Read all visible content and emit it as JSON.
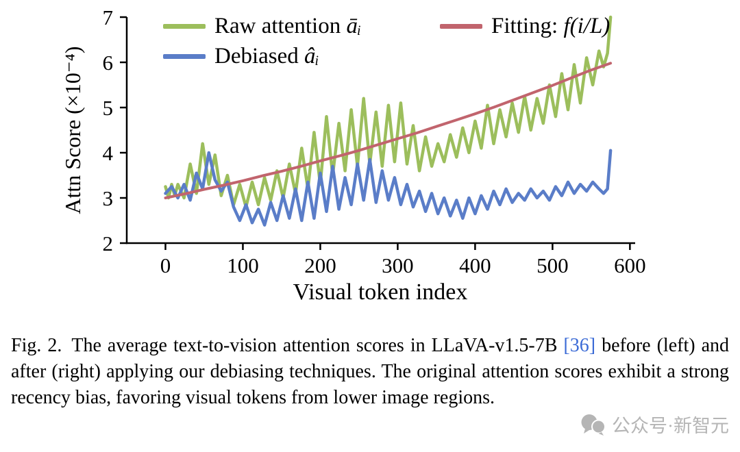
{
  "chart_data": {
    "type": "line",
    "title": "",
    "xlabel": "Visual token index",
    "ylabel": "Attn Score (×10⁻⁴)",
    "xlim": [
      -50,
      605
    ],
    "ylim": [
      2,
      7
    ],
    "x_ticks": [
      0,
      100,
      200,
      300,
      400,
      500,
      600
    ],
    "y_ticks": [
      2,
      3,
      4,
      5,
      6,
      7
    ],
    "grid": false,
    "legend_position": "upper-left-inside",
    "series": [
      {
        "name": "raw-attention",
        "legend_text": "Raw attention",
        "legend_math": "āᵢ",
        "color": "#9cbe5c",
        "width": 4.5,
        "points": [
          [
            0,
            3.25
          ],
          [
            4,
            3.0
          ],
          [
            8,
            3.3
          ],
          [
            12,
            3.05
          ],
          [
            16,
            3.3
          ],
          [
            24,
            3.0
          ],
          [
            32,
            3.75
          ],
          [
            40,
            3.1
          ],
          [
            48,
            4.2
          ],
          [
            56,
            3.3
          ],
          [
            64,
            3.95
          ],
          [
            72,
            3.05
          ],
          [
            80,
            3.5
          ],
          [
            88,
            2.85
          ],
          [
            96,
            3.3
          ],
          [
            104,
            2.8
          ],
          [
            112,
            3.35
          ],
          [
            120,
            2.85
          ],
          [
            128,
            3.45
          ],
          [
            136,
            2.95
          ],
          [
            144,
            3.6
          ],
          [
            152,
            3.0
          ],
          [
            160,
            3.75
          ],
          [
            168,
            3.1
          ],
          [
            176,
            4.1
          ],
          [
            184,
            3.2
          ],
          [
            192,
            4.45
          ],
          [
            200,
            3.3
          ],
          [
            208,
            4.8
          ],
          [
            216,
            3.5
          ],
          [
            224,
            4.65
          ],
          [
            232,
            3.6
          ],
          [
            240,
            4.95
          ],
          [
            248,
            3.7
          ],
          [
            256,
            5.2
          ],
          [
            264,
            3.75
          ],
          [
            272,
            4.9
          ],
          [
            280,
            3.7
          ],
          [
            288,
            5.05
          ],
          [
            296,
            3.8
          ],
          [
            304,
            5.1
          ],
          [
            312,
            3.75
          ],
          [
            320,
            4.6
          ],
          [
            328,
            3.6
          ],
          [
            336,
            4.35
          ],
          [
            344,
            3.7
          ],
          [
            352,
            4.2
          ],
          [
            360,
            3.8
          ],
          [
            368,
            4.4
          ],
          [
            376,
            3.9
          ],
          [
            384,
            4.55
          ],
          [
            392,
            4.0
          ],
          [
            400,
            4.7
          ],
          [
            408,
            4.1
          ],
          [
            416,
            5.05
          ],
          [
            424,
            4.2
          ],
          [
            432,
            4.95
          ],
          [
            440,
            4.35
          ],
          [
            448,
            5.1
          ],
          [
            456,
            4.45
          ],
          [
            464,
            5.25
          ],
          [
            472,
            4.5
          ],
          [
            480,
            5.2
          ],
          [
            488,
            4.65
          ],
          [
            496,
            5.5
          ],
          [
            504,
            4.8
          ],
          [
            512,
            5.75
          ],
          [
            520,
            4.95
          ],
          [
            528,
            5.95
          ],
          [
            536,
            5.1
          ],
          [
            544,
            6.1
          ],
          [
            552,
            5.5
          ],
          [
            560,
            6.25
          ],
          [
            566,
            5.9
          ],
          [
            571,
            6.2
          ],
          [
            575,
            7.0
          ]
        ]
      },
      {
        "name": "debiased",
        "legend_text": "Debiased",
        "legend_math": "âᵢ",
        "color": "#5a7dc8",
        "width": 4.5,
        "points": [
          [
            0,
            3.1
          ],
          [
            8,
            3.25
          ],
          [
            16,
            3.0
          ],
          [
            24,
            3.3
          ],
          [
            32,
            2.95
          ],
          [
            40,
            3.55
          ],
          [
            48,
            3.2
          ],
          [
            56,
            4.0
          ],
          [
            64,
            3.4
          ],
          [
            72,
            3.15
          ],
          [
            80,
            3.35
          ],
          [
            88,
            2.8
          ],
          [
            96,
            2.5
          ],
          [
            104,
            2.85
          ],
          [
            112,
            2.45
          ],
          [
            120,
            2.75
          ],
          [
            128,
            2.4
          ],
          [
            136,
            2.9
          ],
          [
            144,
            2.5
          ],
          [
            152,
            3.05
          ],
          [
            160,
            2.55
          ],
          [
            168,
            3.2
          ],
          [
            176,
            2.5
          ],
          [
            184,
            3.35
          ],
          [
            192,
            2.55
          ],
          [
            200,
            3.55
          ],
          [
            208,
            2.7
          ],
          [
            216,
            3.7
          ],
          [
            224,
            2.75
          ],
          [
            232,
            3.45
          ],
          [
            240,
            2.85
          ],
          [
            248,
            3.75
          ],
          [
            256,
            2.95
          ],
          [
            264,
            3.85
          ],
          [
            272,
            2.9
          ],
          [
            280,
            3.6
          ],
          [
            288,
            2.95
          ],
          [
            296,
            3.45
          ],
          [
            304,
            2.85
          ],
          [
            312,
            3.3
          ],
          [
            320,
            2.8
          ],
          [
            328,
            3.15
          ],
          [
            336,
            2.7
          ],
          [
            344,
            3.1
          ],
          [
            352,
            2.65
          ],
          [
            360,
            3.0
          ],
          [
            368,
            2.6
          ],
          [
            376,
            2.95
          ],
          [
            384,
            2.55
          ],
          [
            392,
            3.0
          ],
          [
            400,
            2.65
          ],
          [
            408,
            3.05
          ],
          [
            416,
            2.75
          ],
          [
            424,
            3.15
          ],
          [
            432,
            2.85
          ],
          [
            440,
            3.2
          ],
          [
            448,
            2.9
          ],
          [
            456,
            3.1
          ],
          [
            464,
            2.95
          ],
          [
            472,
            3.2
          ],
          [
            480,
            3.0
          ],
          [
            488,
            3.15
          ],
          [
            496,
            2.95
          ],
          [
            504,
            3.25
          ],
          [
            512,
            3.05
          ],
          [
            520,
            3.35
          ],
          [
            528,
            3.1
          ],
          [
            536,
            3.3
          ],
          [
            544,
            3.15
          ],
          [
            552,
            3.35
          ],
          [
            560,
            3.2
          ],
          [
            566,
            3.1
          ],
          [
            571,
            3.2
          ],
          [
            575,
            4.05
          ]
        ]
      },
      {
        "name": "fitting",
        "legend_text": "Fitting:",
        "legend_math": "f(i/L)",
        "color": "#c1646d",
        "width": 4,
        "points": [
          [
            0,
            3.0
          ],
          [
            25,
            3.09
          ],
          [
            50,
            3.19
          ],
          [
            75,
            3.28
          ],
          [
            100,
            3.38
          ],
          [
            125,
            3.49
          ],
          [
            150,
            3.59
          ],
          [
            175,
            3.7
          ],
          [
            200,
            3.82
          ],
          [
            225,
            3.93
          ],
          [
            250,
            4.05
          ],
          [
            275,
            4.18
          ],
          [
            300,
            4.31
          ],
          [
            325,
            4.44
          ],
          [
            350,
            4.58
          ],
          [
            375,
            4.72
          ],
          [
            400,
            4.86
          ],
          [
            425,
            5.01
          ],
          [
            450,
            5.17
          ],
          [
            475,
            5.33
          ],
          [
            500,
            5.49
          ],
          [
            525,
            5.66
          ],
          [
            550,
            5.83
          ],
          [
            575,
            5.98
          ]
        ]
      }
    ]
  },
  "caption": {
    "label": "Fig. 2.",
    "text_before_cite": "The average text-to-vision attention scores in LLaVA-v1.5-7B",
    "cite": "[36]",
    "text_after_cite": "before (left) and after (right) applying our debiasing techniques. The original attention scores exhibit a strong recency bias, favoring visual tokens from lower image regions."
  },
  "watermark": {
    "text": "公众号·新智元"
  },
  "colors": {
    "axis": "#000000",
    "cite": "#3b6bd6",
    "watermark": "#b5b5b5"
  }
}
